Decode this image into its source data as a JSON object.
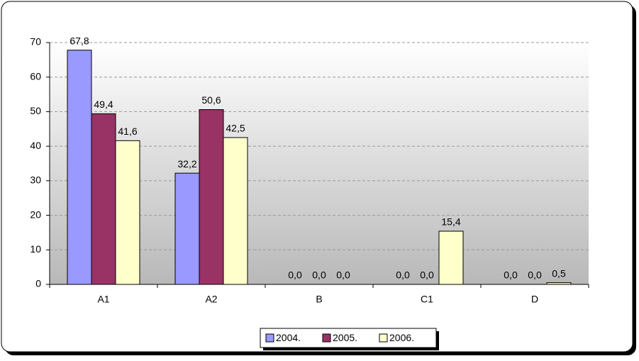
{
  "chart_data": {
    "type": "bar",
    "categories": [
      "A1",
      "A2",
      "B",
      "C1",
      "D"
    ],
    "series": [
      {
        "name": "2004.",
        "color": "#9999ff",
        "values": [
          67.8,
          32.2,
          0,
          0,
          0
        ],
        "value_labels": [
          "67,8",
          "32,2",
          "0,0",
          "0,0",
          "0,0"
        ]
      },
      {
        "name": "2005.",
        "color": "#993366",
        "values": [
          49.4,
          50.6,
          0,
          0,
          0
        ],
        "value_labels": [
          "49,4",
          "50,6",
          "0,0",
          "0,0",
          "0,0"
        ]
      },
      {
        "name": "2006.",
        "color": "#ffffcc",
        "values": [
          41.6,
          42.5,
          0,
          15.4,
          0.5
        ],
        "value_labels": [
          "41,6",
          "42,5",
          "0,0",
          "15,4",
          "0,5"
        ]
      }
    ],
    "ylim": [
      0,
      70
    ],
    "yticks": [
      0,
      10,
      20,
      30,
      40,
      50,
      60,
      70
    ],
    "grid": true,
    "legend": "bottom"
  }
}
